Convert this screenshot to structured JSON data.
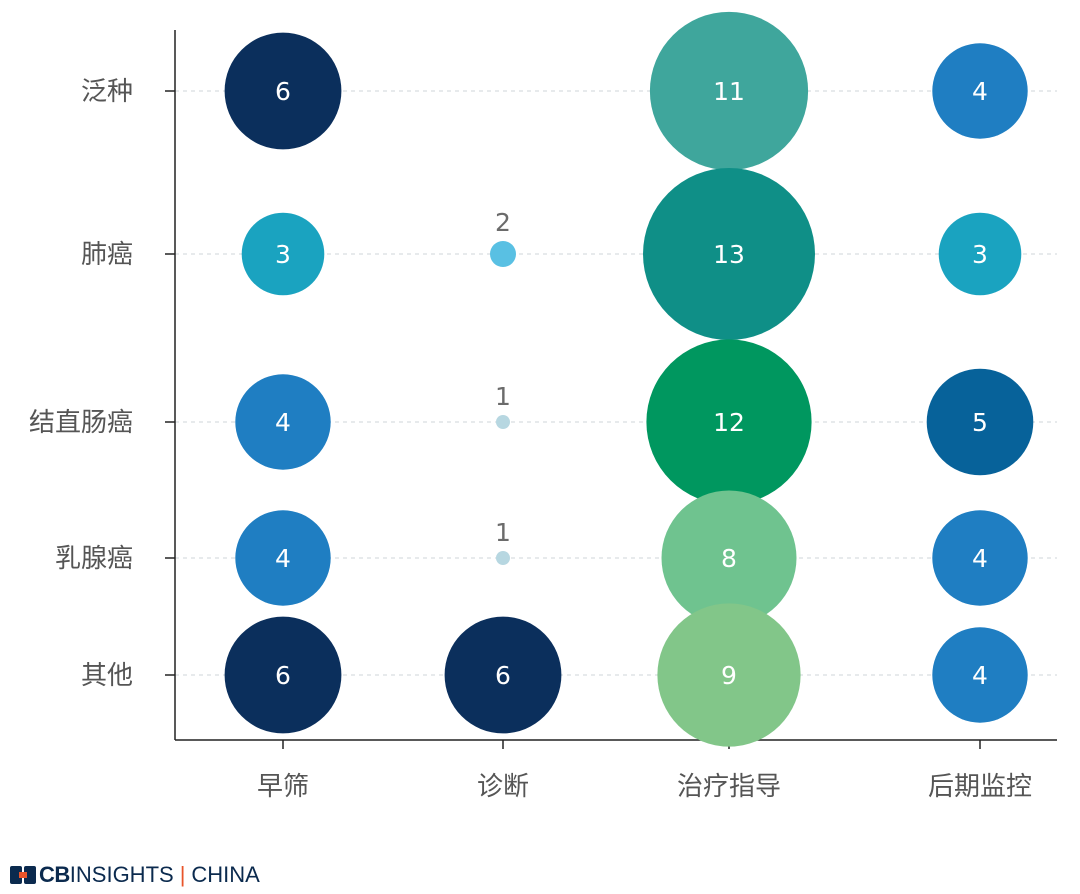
{
  "chart_data": {
    "type": "bubble",
    "categories_x": [
      "早筛",
      "诊断",
      "治疗指导",
      "后期监控"
    ],
    "categories_y": [
      "泛种",
      "肺癌",
      "结直肠癌",
      "乳腺癌",
      "其他"
    ],
    "points": [
      {
        "x": "早筛",
        "y": "泛种",
        "value": 6,
        "color": "#0b2f5c",
        "label_inside": true
      },
      {
        "x": "治疗指导",
        "y": "泛种",
        "value": 11,
        "color": "#3fa69c",
        "label_inside": true
      },
      {
        "x": "后期监控",
        "y": "泛种",
        "value": 4,
        "color": "#1f7ec2",
        "label_inside": true
      },
      {
        "x": "早筛",
        "y": "肺癌",
        "value": 3,
        "color": "#1aa3c0",
        "label_inside": true
      },
      {
        "x": "诊断",
        "y": "肺癌",
        "value": 2,
        "color": "#59c0e3",
        "label_inside": false
      },
      {
        "x": "治疗指导",
        "y": "肺癌",
        "value": 13,
        "color": "#0f8f87",
        "label_inside": true
      },
      {
        "x": "后期监控",
        "y": "肺癌",
        "value": 3,
        "color": "#1aa3c0",
        "label_inside": true
      },
      {
        "x": "早筛",
        "y": "结直肠癌",
        "value": 4,
        "color": "#1f7ec2",
        "label_inside": true
      },
      {
        "x": "诊断",
        "y": "结直肠癌",
        "value": 1,
        "color": "#b7d7e1",
        "label_inside": false
      },
      {
        "x": "治疗指导",
        "y": "结直肠癌",
        "value": 12,
        "color": "#00975f",
        "label_inside": true
      },
      {
        "x": "后期监控",
        "y": "结直肠癌",
        "value": 5,
        "color": "#07629a",
        "label_inside": true
      },
      {
        "x": "早筛",
        "y": "乳腺癌",
        "value": 4,
        "color": "#1f7ec2",
        "label_inside": true
      },
      {
        "x": "诊断",
        "y": "乳腺癌",
        "value": 1,
        "color": "#b7d7e1",
        "label_inside": false
      },
      {
        "x": "治疗指导",
        "y": "乳腺癌",
        "value": 8,
        "color": "#6fc38f",
        "label_inside": true
      },
      {
        "x": "后期监控",
        "y": "乳腺癌",
        "value": 4,
        "color": "#1f7ec2",
        "label_inside": true
      },
      {
        "x": "早筛",
        "y": "其他",
        "value": 6,
        "color": "#0b2f5c",
        "label_inside": true
      },
      {
        "x": "诊断",
        "y": "其他",
        "value": 6,
        "color": "#0b2f5c",
        "label_inside": true
      },
      {
        "x": "治疗指导",
        "y": "其他",
        "value": 9,
        "color": "#82c689",
        "label_inside": true
      },
      {
        "x": "后期监控",
        "y": "其他",
        "value": 4,
        "color": "#1f7ec2",
        "label_inside": true
      }
    ],
    "title": "",
    "xlabel": "",
    "ylabel": "",
    "grid": "horizontal-dashed",
    "legend": "none"
  },
  "colors": {
    "axis": "#222222",
    "grid": "#cfd6d9",
    "label_inside": "#ffffff",
    "label_outside": "#6b6b6b",
    "tick_text": "#555555"
  },
  "logo": {
    "cb": "CB",
    "insights": "INSIGHTS",
    "separator": "|",
    "china": "CHINA"
  }
}
